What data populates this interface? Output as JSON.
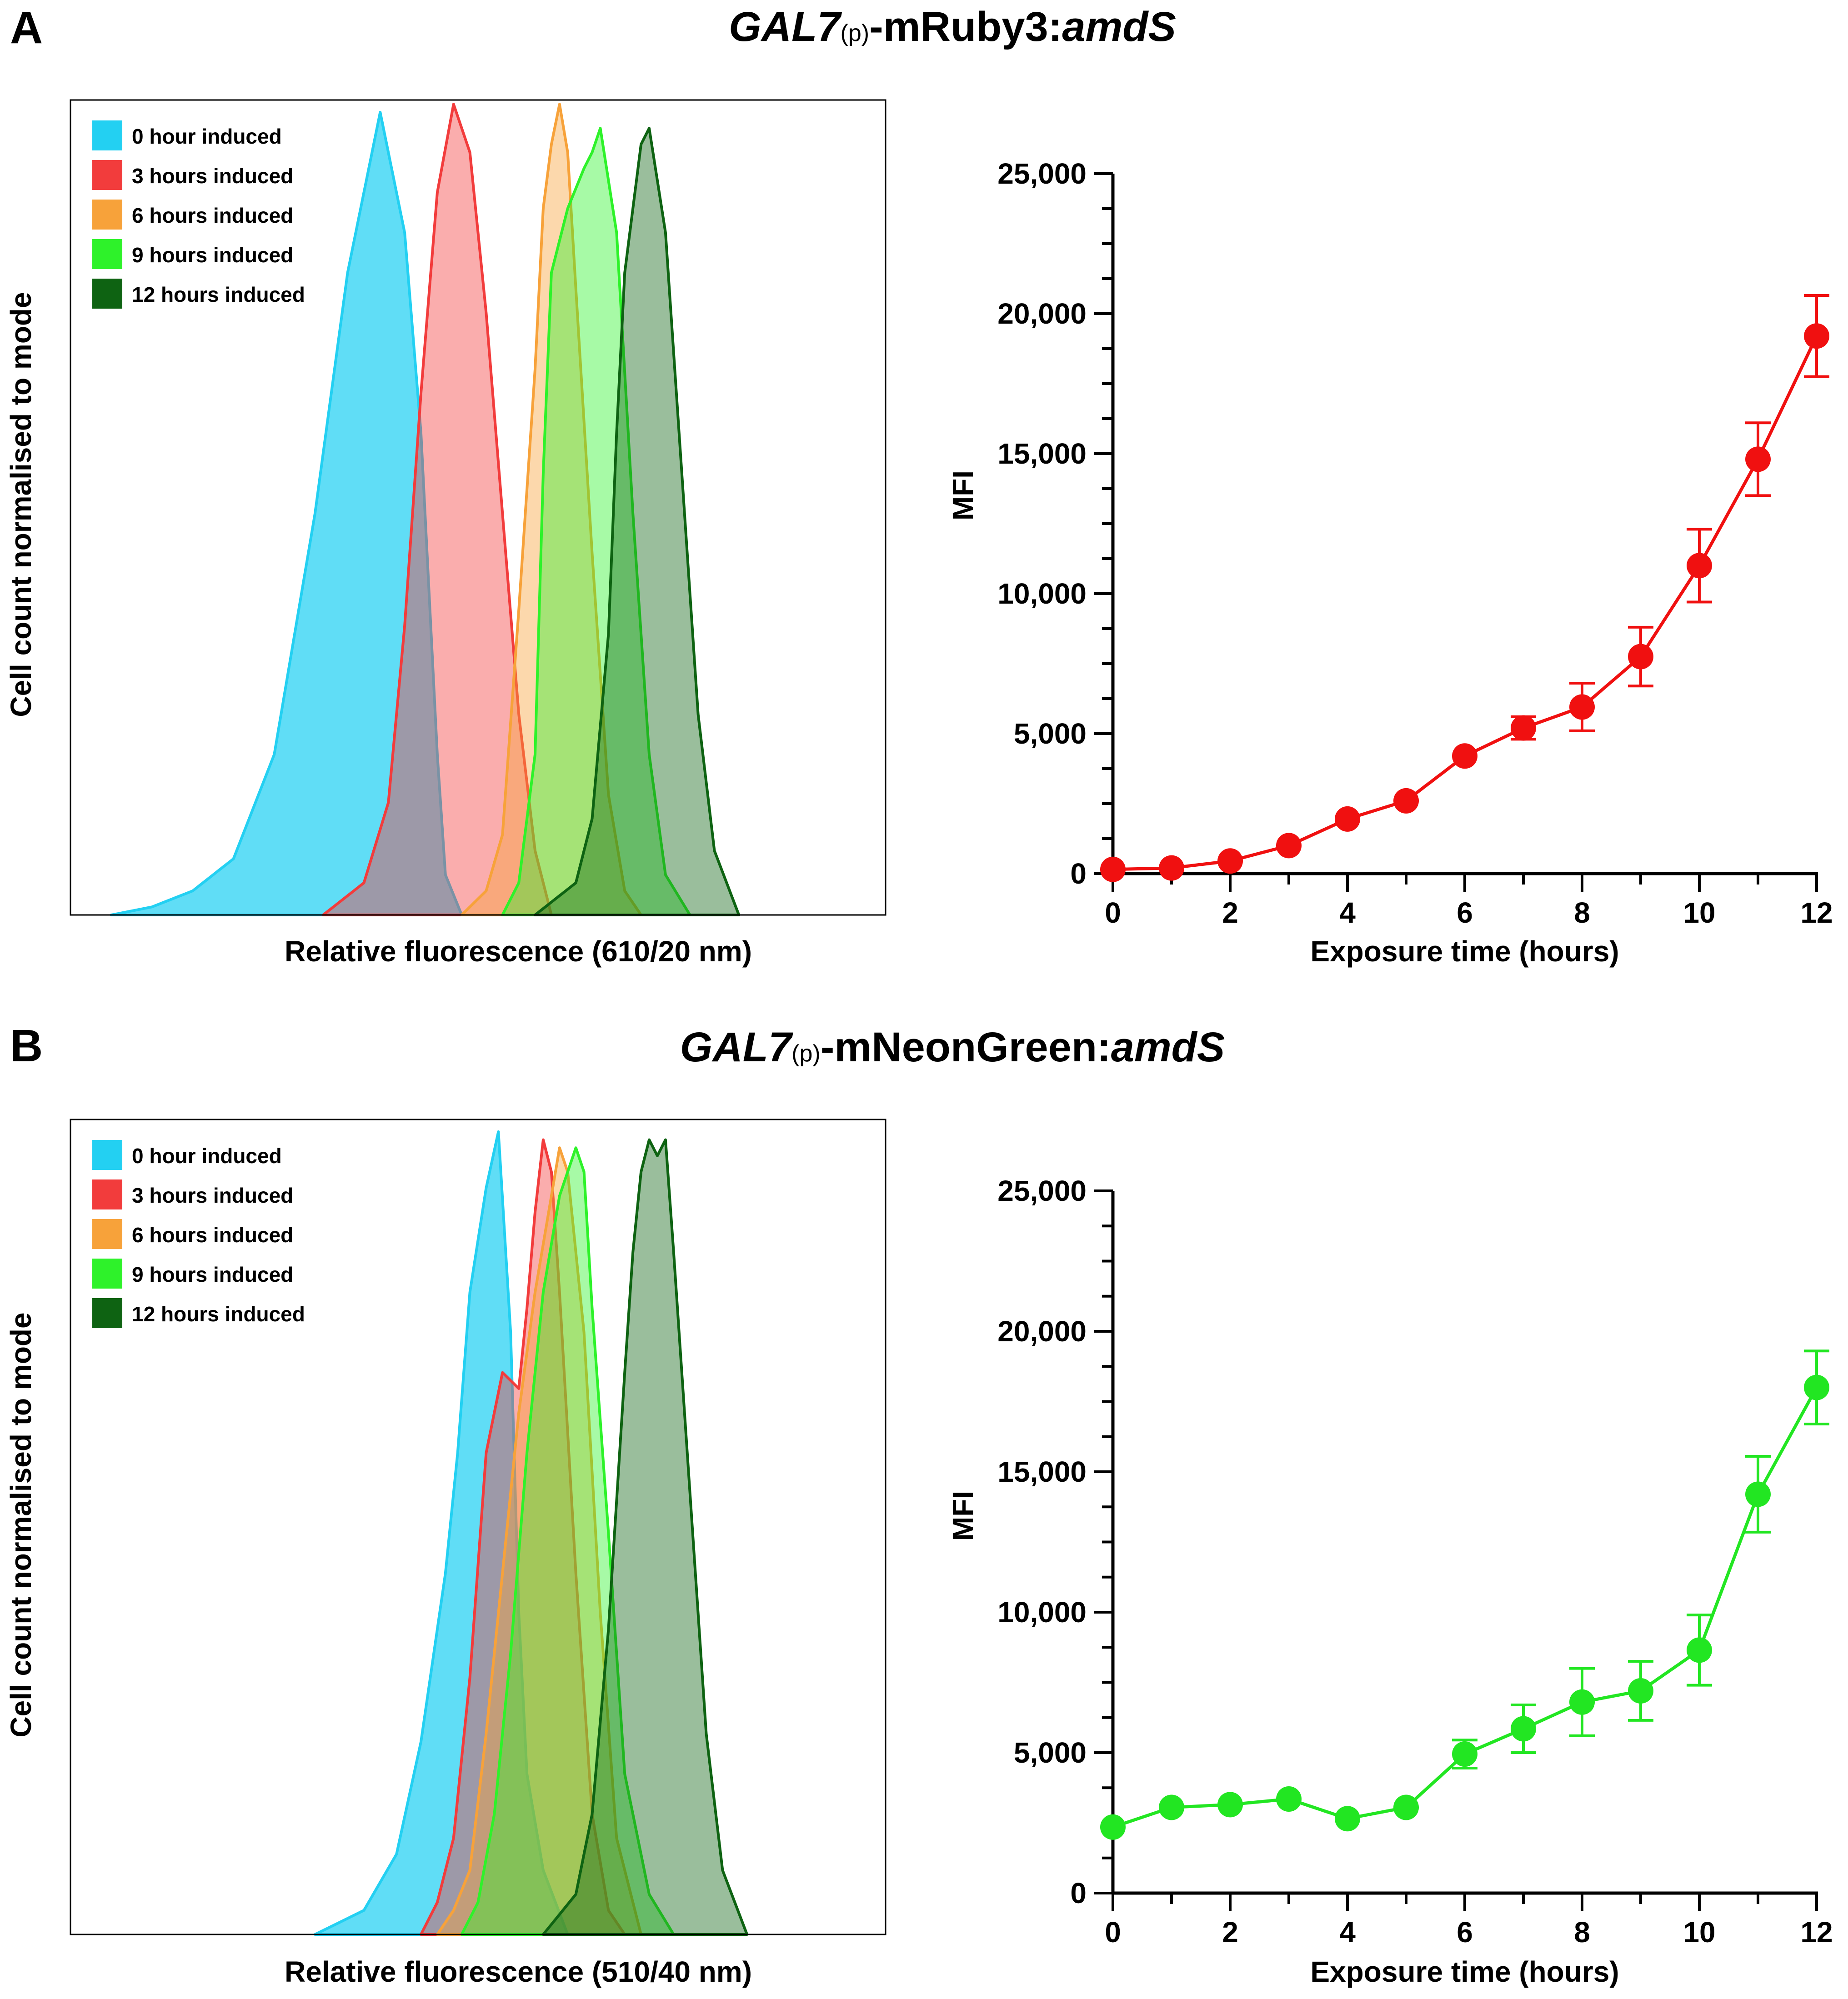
{
  "panels": [
    {
      "letter": "A",
      "title": {
        "gene": "GAL7",
        "sub": "(p)",
        "middle": "-mRuby3:",
        "tail": "amdS"
      },
      "histogram": {
        "xlabel": "Relative fluorescence (610/20 nm)",
        "ylabel": "Cell count normalised to mode",
        "legend": [
          {
            "label": "0 hour induced",
            "color": "#23d0f2"
          },
          {
            "label": "3 hours induced",
            "color": "#f23c3c"
          },
          {
            "label": "6 hours induced",
            "color": "#f7a23a"
          },
          {
            "label": "9 hours induced",
            "color": "#2ef22a"
          },
          {
            "label": "12 hours induced",
            "color": "#0e6312"
          }
        ]
      },
      "line": {
        "color": "#f01010",
        "ylabel": "MFI",
        "xlabel": "Exposure time (hours)",
        "yticks": [
          "0",
          "5,000",
          "10,000",
          "15,000",
          "20,000",
          "25,000"
        ],
        "xticks": [
          "0",
          "2",
          "4",
          "6",
          "8",
          "10",
          "12"
        ]
      }
    },
    {
      "letter": "B",
      "title": {
        "gene": "GAL7",
        "sub": "(p)",
        "middle": "-mNeonGreen:",
        "tail": "amdS"
      },
      "histogram": {
        "xlabel": "Relative fluorescence (510/40 nm)",
        "ylabel": "Cell count normalised to mode",
        "legend": [
          {
            "label": "0 hour induced",
            "color": "#23d0f2"
          },
          {
            "label": "3 hours induced",
            "color": "#f23c3c"
          },
          {
            "label": "6 hours induced",
            "color": "#f7a23a"
          },
          {
            "label": "9 hours induced",
            "color": "#2ef22a"
          },
          {
            "label": "12 hours induced",
            "color": "#0e6312"
          }
        ]
      },
      "line": {
        "color": "#22e622",
        "ylabel": "MFI",
        "xlabel": "Exposure time (hours)",
        "yticks": [
          "0",
          "5,000",
          "10,000",
          "15,000",
          "20,000",
          "25,000"
        ],
        "xticks": [
          "0",
          "2",
          "4",
          "6",
          "8",
          "10",
          "12"
        ]
      }
    }
  ],
  "chart_data": [
    {
      "type": "area",
      "title": "GAL7(p)-mRuby3:amdS",
      "xlabel": "Relative fluorescence (610/20 nm)",
      "ylabel": "Cell count normalised to mode",
      "xlim": [
        0,
        100
      ],
      "ylim": [
        0,
        100
      ],
      "legend_position": "top-left",
      "series": [
        {
          "name": "0 hour induced",
          "points": [
            [
              5,
              0
            ],
            [
              10,
              1
            ],
            [
              15,
              3
            ],
            [
              20,
              7
            ],
            [
              25,
              20
            ],
            [
              30,
              50
            ],
            [
              34,
              80
            ],
            [
              38,
              100
            ],
            [
              41,
              85
            ],
            [
              43,
              60
            ],
            [
              45,
              20
            ],
            [
              46,
              5
            ],
            [
              48,
              0
            ]
          ]
        },
        {
          "name": "3 hours induced",
          "points": [
            [
              31,
              0
            ],
            [
              36,
              4
            ],
            [
              39,
              14
            ],
            [
              41,
              36
            ],
            [
              43,
              65
            ],
            [
              45,
              90
            ],
            [
              47,
              101
            ],
            [
              49,
              95
            ],
            [
              51,
              75
            ],
            [
              53,
              50
            ],
            [
              55,
              25
            ],
            [
              57,
              8
            ],
            [
              59,
              0
            ]
          ]
        },
        {
          "name": "6 hours induced",
          "points": [
            [
              48,
              0
            ],
            [
              51,
              3
            ],
            [
              53,
              10
            ],
            [
              55,
              38
            ],
            [
              57,
              68
            ],
            [
              58,
              88
            ],
            [
              59,
              96
            ],
            [
              60,
              101
            ],
            [
              61,
              95
            ],
            [
              62,
              78
            ],
            [
              64,
              45
            ],
            [
              66,
              15
            ],
            [
              68,
              3
            ],
            [
              70,
              0
            ]
          ]
        },
        {
          "name": "9 hours induced",
          "points": [
            [
              53,
              0
            ],
            [
              55,
              4
            ],
            [
              57,
              20
            ],
            [
              58,
              55
            ],
            [
              59,
              80
            ],
            [
              61,
              88
            ],
            [
              63,
              93
            ],
            [
              64,
              95
            ],
            [
              65,
              98
            ],
            [
              67,
              85
            ],
            [
              69,
              50
            ],
            [
              71,
              20
            ],
            [
              73,
              5
            ],
            [
              76,
              0
            ]
          ]
        },
        {
          "name": "12 hours induced",
          "points": [
            [
              57,
              0
            ],
            [
              62,
              4
            ],
            [
              64,
              12
            ],
            [
              66,
              35
            ],
            [
              67,
              60
            ],
            [
              68,
              80
            ],
            [
              70,
              96
            ],
            [
              71,
              98
            ],
            [
              73,
              85
            ],
            [
              75,
              55
            ],
            [
              77,
              25
            ],
            [
              79,
              8
            ],
            [
              82,
              0
            ]
          ]
        }
      ]
    },
    {
      "type": "line",
      "title": "GAL7(p)-mRuby3:amdS",
      "xlabel": "Exposure time (hours)",
      "ylabel": "MFI",
      "xlim": [
        0,
        12
      ],
      "ylim": [
        0,
        25000
      ],
      "series": [
        {
          "name": "MFI",
          "x": [
            0,
            1,
            2,
            3,
            4,
            5,
            6,
            7,
            8,
            9,
            10,
            11,
            12
          ],
          "values": [
            150,
            200,
            450,
            1000,
            1950,
            2600,
            4200,
            5200,
            5950,
            7750,
            11000,
            14800,
            19200
          ],
          "error": [
            0,
            0,
            0,
            0,
            0,
            0,
            0,
            400,
            850,
            1050,
            1300,
            1300,
            1450
          ]
        }
      ]
    },
    {
      "type": "area",
      "title": "GAL7(p)-mNeonGreen:amdS",
      "xlabel": "Relative fluorescence (510/40 nm)",
      "ylabel": "Cell count normalised to mode",
      "xlim": [
        0,
        100
      ],
      "ylim": [
        0,
        100
      ],
      "legend_position": "top-left",
      "series": [
        {
          "name": "0 hour induced",
          "points": [
            [
              30,
              0
            ],
            [
              36,
              3
            ],
            [
              40,
              10
            ],
            [
              43,
              24
            ],
            [
              46,
              45
            ],
            [
              47.5,
              60
            ],
            [
              49,
              80
            ],
            [
              51,
              93
            ],
            [
              52.5,
              100
            ],
            [
              54,
              75
            ],
            [
              55,
              40
            ],
            [
              56,
              20
            ],
            [
              58,
              8
            ],
            [
              61,
              0
            ]
          ]
        },
        {
          "name": "3 hours induced",
          "points": [
            [
              43,
              0
            ],
            [
              45,
              4
            ],
            [
              47,
              12
            ],
            [
              49,
              32
            ],
            [
              51,
              60
            ],
            [
              53,
              70
            ],
            [
              55,
              68
            ],
            [
              56,
              78
            ],
            [
              57,
              90
            ],
            [
              58,
              99
            ],
            [
              59,
              95
            ],
            [
              60,
              80
            ],
            [
              62,
              45
            ],
            [
              64,
              15
            ],
            [
              66,
              3
            ],
            [
              68,
              0
            ]
          ]
        },
        {
          "name": "6 hours induced",
          "points": [
            [
              45,
              0
            ],
            [
              47,
              3
            ],
            [
              49,
              8
            ],
            [
              51,
              25
            ],
            [
              53,
              45
            ],
            [
              55,
              65
            ],
            [
              57,
              80
            ],
            [
              59,
              92
            ],
            [
              60,
              98
            ],
            [
              61,
              95
            ],
            [
              63,
              75
            ],
            [
              65,
              40
            ],
            [
              67,
              12
            ],
            [
              70,
              0
            ]
          ]
        },
        {
          "name": "9 hours induced",
          "points": [
            [
              48,
              0
            ],
            [
              50,
              4
            ],
            [
              52,
              15
            ],
            [
              54,
              35
            ],
            [
              56,
              60
            ],
            [
              58,
              80
            ],
            [
              60,
              92
            ],
            [
              62,
              98
            ],
            [
              63,
              95
            ],
            [
              64,
              78
            ],
            [
              66,
              50
            ],
            [
              68,
              20
            ],
            [
              71,
              5
            ],
            [
              74,
              0
            ]
          ]
        },
        {
          "name": "12 hours induced",
          "points": [
            [
              58,
              0
            ],
            [
              62,
              5
            ],
            [
              64,
              15
            ],
            [
              66,
              38
            ],
            [
              68,
              70
            ],
            [
              69,
              85
            ],
            [
              70,
              95
            ],
            [
              71,
              99
            ],
            [
              72,
              97
            ],
            [
              73,
              99
            ],
            [
              74,
              85
            ],
            [
              76,
              55
            ],
            [
              78,
              25
            ],
            [
              80,
              8
            ],
            [
              83,
              0
            ]
          ]
        }
      ]
    },
    {
      "type": "line",
      "title": "GAL7(p)-mNeonGreen:amdS",
      "xlabel": "Exposure time (hours)",
      "ylabel": "MFI",
      "xlim": [
        0,
        12
      ],
      "ylim": [
        0,
        25000
      ],
      "series": [
        {
          "name": "MFI",
          "x": [
            0,
            1,
            2,
            3,
            4,
            5,
            6,
            7,
            8,
            9,
            10,
            11,
            12
          ],
          "values": [
            2350,
            3050,
            3150,
            3350,
            2650,
            3050,
            4950,
            5850,
            6800,
            7200,
            8650,
            14200,
            18000
          ],
          "error": [
            0,
            0,
            0,
            0,
            0,
            0,
            500,
            850,
            1200,
            1050,
            1250,
            1350,
            1300
          ]
        }
      ]
    }
  ]
}
